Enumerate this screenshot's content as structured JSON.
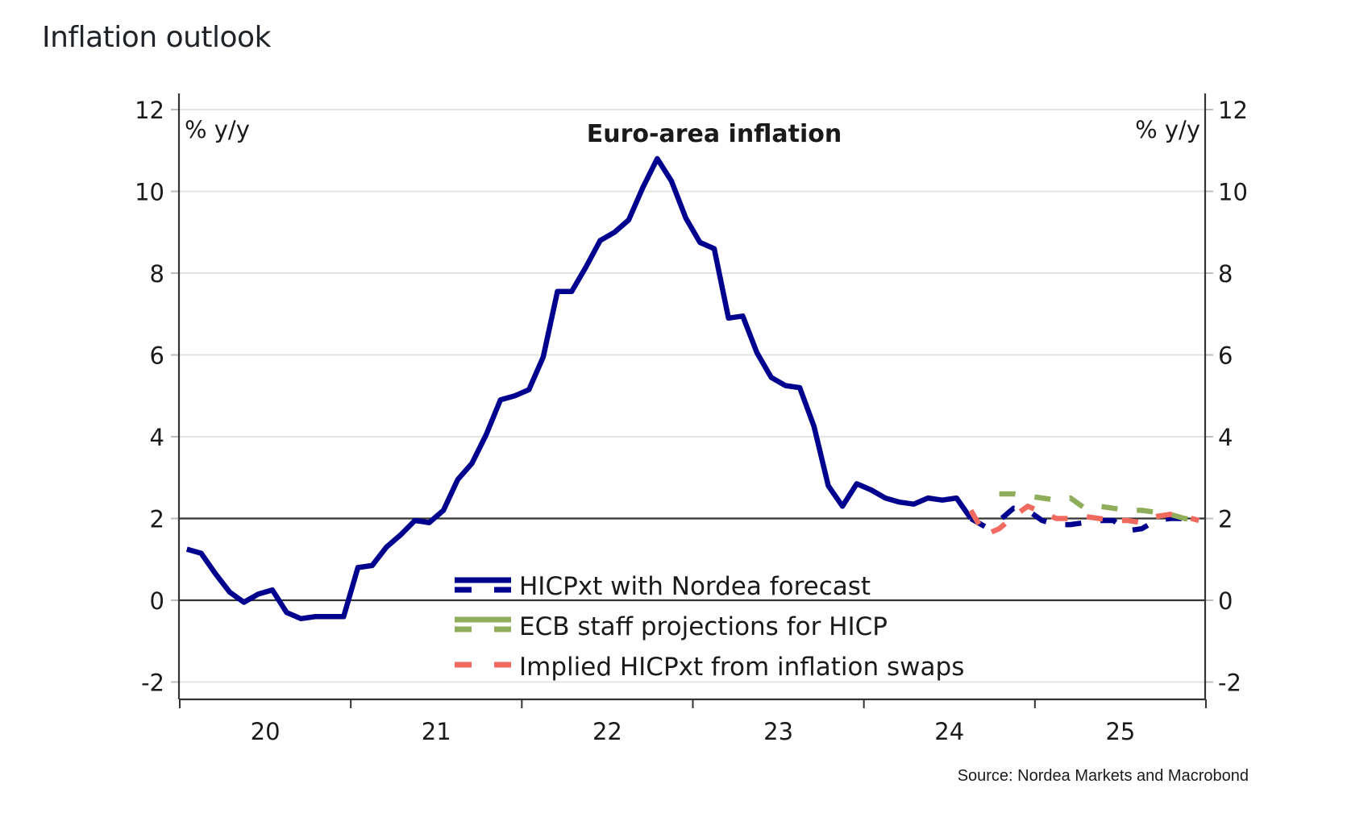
{
  "page": {
    "title": "Inflation outlook"
  },
  "chart_data": {
    "type": "line",
    "title": "Euro-area inflation",
    "ylabel_left": "% y/y",
    "ylabel_right": "% y/y",
    "xlabel": "",
    "ylim": [
      -2.8,
      12.5
    ],
    "yticks": [
      12,
      10,
      8,
      6,
      4,
      2,
      0,
      -2
    ],
    "ytick_labels": [
      "12",
      "10",
      "8",
      "6",
      "4",
      "2",
      "0",
      "-2"
    ],
    "reference_lines": [
      0,
      2
    ],
    "grid": true,
    "x_start": "2020-01",
    "x_end": "2025-12",
    "xtick_labels": [
      "20",
      "21",
      "22",
      "23",
      "24",
      "25"
    ],
    "legend_placement": "bottom-center",
    "source": "Source: Nordea Markets and Macrobond",
    "series": [
      {
        "name": "HICPxt with Nordea forecast",
        "color": "#00008f",
        "style": "solid",
        "start_month_index": 0,
        "values": [
          1.25,
          1.15,
          0.65,
          0.2,
          -0.05,
          0.15,
          0.25,
          -0.3,
          -0.45,
          -0.4,
          -0.4,
          -0.4,
          0.8,
          0.85,
          1.3,
          1.6,
          1.95,
          1.9,
          2.2,
          2.95,
          3.35,
          4.05,
          4.9,
          5.0,
          5.15,
          5.95,
          7.55,
          7.55,
          8.15,
          8.8,
          9.0,
          9.3,
          10.1,
          10.8,
          10.25,
          9.35,
          8.75,
          8.6,
          6.9,
          6.95,
          6.05,
          5.45,
          5.25,
          5.2,
          4.25,
          2.8,
          2.3,
          2.85,
          2.7,
          2.5,
          2.4,
          2.35,
          2.5,
          2.45,
          2.5,
          2.0
        ]
      },
      {
        "name": "HICPxt with Nordea forecast (forecast)",
        "color": "#00008f",
        "style": "dashed",
        "start_month_index": 55,
        "values": [
          2.0,
          1.8,
          1.95,
          2.25,
          2.2,
          1.95,
          1.85,
          1.85,
          1.9,
          1.95,
          1.95,
          1.7,
          1.75,
          1.95,
          2.0,
          2.0,
          2.0
        ]
      },
      {
        "name": "ECB staff projections for HICP",
        "color": "#8fad5a",
        "style": "dashed",
        "start_month_index": 57,
        "values": [
          2.6,
          2.6,
          2.55,
          2.5,
          2.45,
          2.5,
          2.25,
          2.3,
          2.25,
          2.2,
          2.2,
          2.15,
          2.1,
          2.0,
          1.95
        ]
      },
      {
        "name": "Implied HICPxt from inflation swaps",
        "color": "#f06a60",
        "style": "dashed",
        "start_month_index": 55,
        "values": [
          2.2,
          1.6,
          1.75,
          2.05,
          2.3,
          2.15,
          2.0,
          2.0,
          2.05,
          2.0,
          1.95,
          1.95,
          1.9,
          2.05,
          2.1,
          2.05,
          1.95
        ]
      }
    ],
    "legend": [
      {
        "label": "HICPxt with Nordea forecast",
        "color": "#00008f",
        "swatch": "solid-over-dashed"
      },
      {
        "label": "ECB staff projections for HICP",
        "color": "#8fad5a",
        "swatch": "solid-over-dashed"
      },
      {
        "label": "Implied HICPxt from inflation swaps",
        "color": "#f06a60",
        "swatch": "dashed"
      }
    ]
  }
}
